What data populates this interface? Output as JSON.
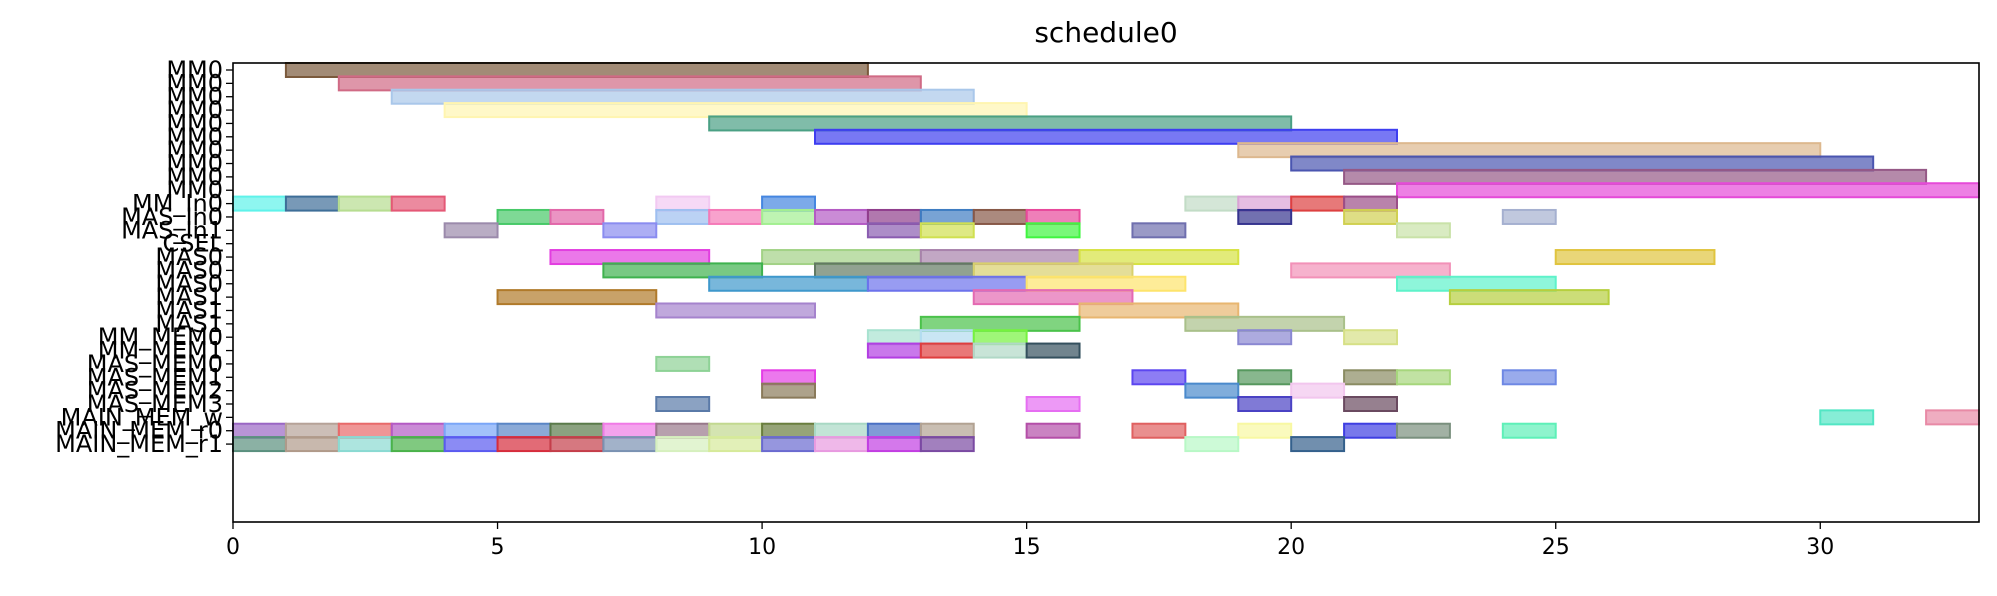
{
  "chart_data": {
    "type": "gantt",
    "title": "schedule0",
    "xlim": [
      0,
      33
    ],
    "x_ticks": [
      0,
      5,
      10,
      15,
      20,
      25,
      30
    ],
    "grid": false,
    "rows": [
      {
        "label": "MM0",
        "bars": [
          {
            "start": 1,
            "end": 12,
            "color": "#7b5a3c"
          }
        ]
      },
      {
        "label": "MM0",
        "bars": [
          {
            "start": 2,
            "end": 13,
            "color": "#d06a85"
          }
        ]
      },
      {
        "label": "MM0",
        "bars": [
          {
            "start": 3,
            "end": 14,
            "color": "#a9c7ea"
          }
        ]
      },
      {
        "label": "MM0",
        "bars": [
          {
            "start": 4,
            "end": 15,
            "color": "#fff5b0"
          }
        ]
      },
      {
        "label": "MM0",
        "bars": [
          {
            "start": 9,
            "end": 20,
            "color": "#4aa084"
          }
        ]
      },
      {
        "label": "MM0",
        "bars": [
          {
            "start": 11,
            "end": 22,
            "color": "#3e3ef0"
          }
        ]
      },
      {
        "label": "MM0",
        "bars": [
          {
            "start": 19,
            "end": 30,
            "color": "#ddb88e"
          }
        ]
      },
      {
        "label": "MM0",
        "bars": [
          {
            "start": 20,
            "end": 31,
            "color": "#4a55b0"
          }
        ]
      },
      {
        "label": "MM0",
        "bars": [
          {
            "start": 21,
            "end": 32,
            "color": "#955886"
          }
        ]
      },
      {
        "label": "MM0",
        "bars": [
          {
            "start": 22,
            "end": 33,
            "color": "#e54ad8"
          }
        ]
      },
      {
        "label": "MM_In0",
        "bars": [
          {
            "start": 0,
            "end": 1,
            "color": "#5ef2ea"
          },
          {
            "start": 1,
            "end": 2,
            "color": "#3e6e98"
          },
          {
            "start": 2,
            "end": 3,
            "color": "#b6dd90"
          },
          {
            "start": 3,
            "end": 4,
            "color": "#e45876"
          },
          {
            "start": 8,
            "end": 9,
            "color": "#f2c9f2"
          },
          {
            "start": 10,
            "end": 11,
            "color": "#4586e0"
          },
          {
            "start": 18,
            "end": 19,
            "color": "#c2dcc6"
          },
          {
            "start": 19,
            "end": 20,
            "color": "#daa2d6"
          },
          {
            "start": 20,
            "end": 21,
            "color": "#dd4040"
          },
          {
            "start": 21,
            "end": 22,
            "color": "#9b4e88"
          }
        ]
      },
      {
        "label": "MAS_In0",
        "bars": [
          {
            "start": 5,
            "end": 6,
            "color": "#47c968"
          },
          {
            "start": 6,
            "end": 7,
            "color": "#e267a9"
          },
          {
            "start": 8,
            "end": 9,
            "color": "#9ebff0"
          },
          {
            "start": 9,
            "end": 10,
            "color": "#f57ab8"
          },
          {
            "start": 10,
            "end": 11,
            "color": "#a3ef91"
          },
          {
            "start": 11,
            "end": 12,
            "color": "#b45ac4"
          },
          {
            "start": 12,
            "end": 13,
            "color": "#903e8c"
          },
          {
            "start": 13,
            "end": 14,
            "color": "#3e7cc2"
          },
          {
            "start": 14,
            "end": 15,
            "color": "#875847"
          },
          {
            "start": 15,
            "end": 16,
            "color": "#e8489b"
          },
          {
            "start": 19,
            "end": 20,
            "color": "#36348f"
          },
          {
            "start": 21,
            "end": 22,
            "color": "#d0d051"
          },
          {
            "start": 24,
            "end": 25,
            "color": "#a5b0d0"
          }
        ]
      },
      {
        "label": "MAS_In1",
        "bars": [
          {
            "start": 4,
            "end": 5,
            "color": "#9b8aab"
          },
          {
            "start": 7,
            "end": 8,
            "color": "#8a8cf0"
          },
          {
            "start": 12,
            "end": 13,
            "color": "#8a5cb0"
          },
          {
            "start": 13,
            "end": 14,
            "color": "#d0e050"
          },
          {
            "start": 15,
            "end": 16,
            "color": "#40f540"
          },
          {
            "start": 17,
            "end": 18,
            "color": "#6f6fae"
          },
          {
            "start": 22,
            "end": 23,
            "color": "#c9e2a8"
          }
        ]
      },
      {
        "label": "CSEL",
        "bars": []
      },
      {
        "label": "MAS0",
        "bars": [
          {
            "start": 6,
            "end": 9,
            "color": "#e23ee0"
          },
          {
            "start": 10,
            "end": 13,
            "color": "#a2d286"
          },
          {
            "start": 13,
            "end": 16,
            "color": "#a882ab"
          },
          {
            "start": 16,
            "end": 19,
            "color": "#d6e242"
          },
          {
            "start": 25,
            "end": 28,
            "color": "#e0c43e"
          }
        ]
      },
      {
        "label": "MAS0",
        "bars": [
          {
            "start": 7,
            "end": 10,
            "color": "#3eb24e"
          },
          {
            "start": 11,
            "end": 14,
            "color": "#627a62"
          },
          {
            "start": 14,
            "end": 17,
            "color": "#d8d06c"
          },
          {
            "start": 20,
            "end": 23,
            "color": "#f291b8"
          }
        ]
      },
      {
        "label": "MAS0",
        "bars": [
          {
            "start": 9,
            "end": 12,
            "color": "#3e98cc"
          },
          {
            "start": 12,
            "end": 15,
            "color": "#6c72ec"
          },
          {
            "start": 15,
            "end": 18,
            "color": "#fde46c"
          },
          {
            "start": 22,
            "end": 25,
            "color": "#5ef2ca"
          }
        ]
      },
      {
        "label": "MAS1",
        "bars": [
          {
            "start": 5,
            "end": 8,
            "color": "#b07a2a"
          },
          {
            "start": 14,
            "end": 17,
            "color": "#e469b2"
          },
          {
            "start": 23,
            "end": 26,
            "color": "#b6cf3e"
          }
        ]
      },
      {
        "label": "MAS1",
        "bars": [
          {
            "start": 8,
            "end": 11,
            "color": "#a583cd"
          },
          {
            "start": 16,
            "end": 19,
            "color": "#e8b670"
          }
        ]
      },
      {
        "label": "MAS1",
        "bars": [
          {
            "start": 13,
            "end": 16,
            "color": "#4ac24a"
          },
          {
            "start": 18,
            "end": 21,
            "color": "#a9c08a"
          }
        ]
      },
      {
        "label": "MM_MEM0",
        "bars": [
          {
            "start": 12,
            "end": 13,
            "color": "#a8e2d0"
          },
          {
            "start": 13,
            "end": 14,
            "color": "#b2dcf0"
          },
          {
            "start": 14,
            "end": 15,
            "color": "#76f23e"
          },
          {
            "start": 19,
            "end": 20,
            "color": "#8a88d2"
          },
          {
            "start": 21,
            "end": 22,
            "color": "#d6e086"
          }
        ]
      },
      {
        "label": "MM_MEM1",
        "bars": [
          {
            "start": 12,
            "end": 13,
            "color": "#b23ee2"
          },
          {
            "start": 13,
            "end": 14,
            "color": "#df3e3e"
          },
          {
            "start": 14,
            "end": 15,
            "color": "#b0d8c6"
          },
          {
            "start": 15,
            "end": 16,
            "color": "#34505e"
          }
        ]
      },
      {
        "label": "MAS_MEM0",
        "bars": [
          {
            "start": 8,
            "end": 9,
            "color": "#8ed296"
          }
        ]
      },
      {
        "label": "MAS_MEM1",
        "bars": [
          {
            "start": 10,
            "end": 11,
            "color": "#e43ee6"
          },
          {
            "start": 17,
            "end": 18,
            "color": "#5c46f0"
          },
          {
            "start": 19,
            "end": 20,
            "color": "#56985e"
          },
          {
            "start": 21,
            "end": 22,
            "color": "#8a8c62"
          },
          {
            "start": 22,
            "end": 23,
            "color": "#a6d67c"
          },
          {
            "start": 24,
            "end": 25,
            "color": "#6e88e4"
          }
        ]
      },
      {
        "label": "MAS_MEM2",
        "bars": [
          {
            "start": 10,
            "end": 11,
            "color": "#8a7a5a"
          },
          {
            "start": 18,
            "end": 19,
            "color": "#4a8acc"
          },
          {
            "start": 20,
            "end": 21,
            "color": "#f2c6ee"
          }
        ]
      },
      {
        "label": "MAS_MEM3",
        "bars": [
          {
            "start": 8,
            "end": 9,
            "color": "#5a7aa8"
          },
          {
            "start": 15,
            "end": 16,
            "color": "#e66ef2"
          },
          {
            "start": 19,
            "end": 20,
            "color": "#4a42c4"
          },
          {
            "start": 21,
            "end": 22,
            "color": "#6a4a60"
          }
        ]
      },
      {
        "label": "MAIN_MEM_w",
        "bars": [
          {
            "start": 30,
            "end": 31,
            "color": "#52e6c4"
          },
          {
            "start": 32,
            "end": 33,
            "color": "#e88aa6"
          }
        ]
      },
      {
        "label": "MAIN_MEM_r0",
        "bars": [
          {
            "start": 0,
            "end": 1,
            "color": "#9a66c4"
          },
          {
            "start": 1,
            "end": 2,
            "color": "#b6a298"
          },
          {
            "start": 2,
            "end": 3,
            "color": "#e86a6a"
          },
          {
            "start": 3,
            "end": 4,
            "color": "#b45ac4"
          },
          {
            "start": 4,
            "end": 5,
            "color": "#7aa6f8"
          },
          {
            "start": 5,
            "end": 6,
            "color": "#5a86c6"
          },
          {
            "start": 6,
            "end": 7,
            "color": "#5a7a4a"
          },
          {
            "start": 7,
            "end": 8,
            "color": "#f07ae6"
          },
          {
            "start": 8,
            "end": 9,
            "color": "#98788a"
          },
          {
            "start": 9,
            "end": 10,
            "color": "#c2d890"
          },
          {
            "start": 10,
            "end": 11,
            "color": "#6a7e3e"
          },
          {
            "start": 11,
            "end": 12,
            "color": "#a8d8c4"
          },
          {
            "start": 12,
            "end": 13,
            "color": "#4a70c4"
          },
          {
            "start": 13,
            "end": 14,
            "color": "#b2a292"
          },
          {
            "start": 15,
            "end": 16,
            "color": "#b44ea8"
          },
          {
            "start": 17,
            "end": 18,
            "color": "#e06060"
          },
          {
            "start": 19,
            "end": 20,
            "color": "#f8f8a2"
          },
          {
            "start": 21,
            "end": 22,
            "color": "#3e3ee2"
          },
          {
            "start": 22,
            "end": 23,
            "color": "#7a907e"
          },
          {
            "start": 24,
            "end": 25,
            "color": "#5ef0b8"
          }
        ]
      },
      {
        "label": "MAIN_MEM_r1",
        "bars": [
          {
            "start": 0,
            "end": 1,
            "color": "#5a907e"
          },
          {
            "start": 1,
            "end": 2,
            "color": "#b09a8a"
          },
          {
            "start": 2,
            "end": 3,
            "color": "#8adad2"
          },
          {
            "start": 3,
            "end": 4,
            "color": "#4ab24a"
          },
          {
            "start": 4,
            "end": 5,
            "color": "#5a5af0"
          },
          {
            "start": 5,
            "end": 6,
            "color": "#d62c3c"
          },
          {
            "start": 6,
            "end": 7,
            "color": "#c43e4a"
          },
          {
            "start": 7,
            "end": 8,
            "color": "#7a92b2"
          },
          {
            "start": 8,
            "end": 9,
            "color": "#d6f0be"
          },
          {
            "start": 9,
            "end": 10,
            "color": "#d6ea9a"
          },
          {
            "start": 10,
            "end": 11,
            "color": "#6a6ad0"
          },
          {
            "start": 11,
            "end": 12,
            "color": "#e89ae0"
          },
          {
            "start": 12,
            "end": 13,
            "color": "#c23ee2"
          },
          {
            "start": 13,
            "end": 14,
            "color": "#7a4aa2"
          },
          {
            "start": 18,
            "end": 19,
            "color": "#b8f8c6"
          },
          {
            "start": 20,
            "end": 21,
            "color": "#34608c"
          }
        ]
      }
    ]
  }
}
